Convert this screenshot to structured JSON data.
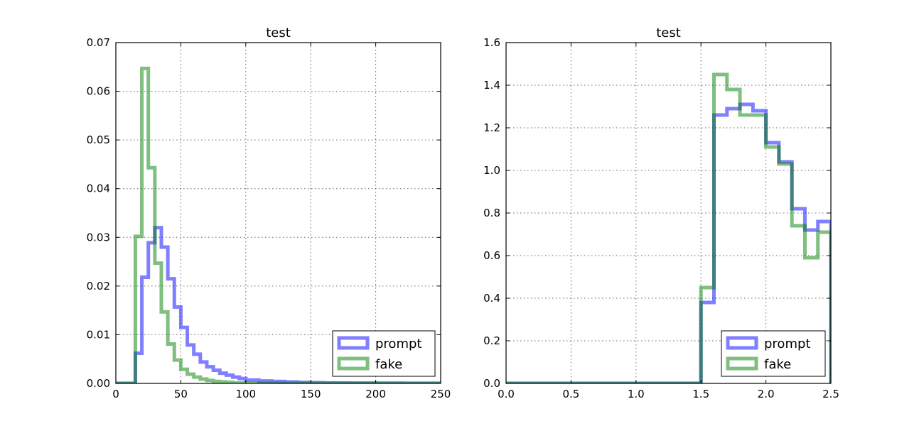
{
  "chart_data": [
    {
      "type": "line",
      "style": "step-histogram",
      "title": "test",
      "xlabel": "",
      "ylabel": "",
      "xlim": [
        0,
        250
      ],
      "ylim": [
        0,
        0.07
      ],
      "xticks": [
        0,
        50,
        100,
        150,
        200,
        250
      ],
      "xtick_labels": [
        "0",
        "50",
        "100",
        "150",
        "200",
        "250"
      ],
      "yticks": [
        0.0,
        0.01,
        0.02,
        0.03,
        0.04,
        0.05,
        0.06,
        0.07
      ],
      "ytick_labels": [
        "0.00",
        "0.01",
        "0.02",
        "0.03",
        "0.04",
        "0.05",
        "0.06",
        "0.07"
      ],
      "grid": true,
      "legend_position": "lower-right",
      "bin_edges": [
        0,
        5,
        10,
        15,
        20,
        25,
        30,
        35,
        40,
        45,
        50,
        55,
        60,
        65,
        70,
        75,
        80,
        85,
        90,
        95,
        100,
        110,
        120,
        130,
        140,
        150,
        160,
        170,
        180,
        190,
        200,
        210,
        220,
        230,
        240,
        250
      ],
      "series": [
        {
          "name": "prompt",
          "color": "#0000ff",
          "values": [
            0,
            0,
            0,
            0.0062,
            0.0218,
            0.0289,
            0.032,
            0.028,
            0.0215,
            0.0157,
            0.0115,
            0.0079,
            0.006,
            0.0044,
            0.0034,
            0.0027,
            0.0021,
            0.0017,
            0.0013,
            0.001,
            0.0007,
            0.0005,
            0.0004,
            0.0003,
            0.0002,
            0.00015,
            0.0001,
            8e-05,
            6e-05,
            5e-05,
            4e-05,
            3e-05,
            2e-05,
            2e-05,
            1e-05
          ]
        },
        {
          "name": "fake",
          "color": "#008000",
          "values": [
            0,
            0,
            0,
            0.0302,
            0.0647,
            0.0443,
            0.0247,
            0.0147,
            0.0081,
            0.0048,
            0.0029,
            0.0019,
            0.0013,
            0.0009,
            0.0006,
            0.0004,
            0.0003,
            0.0002,
            0.0001,
            8e-05,
            4e-05,
            2e-05,
            1e-05,
            0,
            0,
            0,
            0,
            0,
            0,
            0,
            0,
            0,
            0,
            0,
            0
          ]
        }
      ]
    },
    {
      "type": "line",
      "style": "step-histogram",
      "title": "test",
      "xlabel": "",
      "ylabel": "",
      "xlim": [
        0,
        2.5
      ],
      "ylim": [
        0,
        1.6
      ],
      "xticks": [
        0,
        0.5,
        1.0,
        1.5,
        2.0,
        2.5
      ],
      "xtick_labels": [
        "0.0",
        "0.5",
        "1.0",
        "1.5",
        "2.0",
        "2.5"
      ],
      "yticks": [
        0.0,
        0.2,
        0.4,
        0.6,
        0.8,
        1.0,
        1.2,
        1.4,
        1.6
      ],
      "ytick_labels": [
        "0.0",
        "0.2",
        "0.4",
        "0.6",
        "0.8",
        "1.0",
        "1.2",
        "1.4",
        "1.6"
      ],
      "grid": true,
      "legend_position": "lower-right",
      "bin_edges": [
        0,
        0.1,
        0.2,
        0.3,
        0.4,
        0.5,
        0.6,
        0.7,
        0.8,
        0.9,
        1.0,
        1.1,
        1.2,
        1.3,
        1.4,
        1.5,
        1.6,
        1.7,
        1.8,
        1.9,
        2.0,
        2.1,
        2.2,
        2.3,
        2.4,
        2.5
      ],
      "series": [
        {
          "name": "prompt",
          "color": "#0000ff",
          "values": [
            0,
            0,
            0,
            0,
            0,
            0,
            0,
            0,
            0,
            0,
            0,
            0,
            0,
            0,
            0,
            0.38,
            1.26,
            1.29,
            1.31,
            1.28,
            1.13,
            1.04,
            0.82,
            0.72,
            0.76
          ]
        },
        {
          "name": "fake",
          "color": "#008000",
          "values": [
            0,
            0,
            0,
            0,
            0,
            0,
            0,
            0,
            0,
            0,
            0,
            0,
            0,
            0,
            0,
            0.45,
            1.45,
            1.38,
            1.26,
            1.26,
            1.11,
            1.03,
            0.74,
            0.59,
            0.71
          ]
        }
      ]
    }
  ]
}
